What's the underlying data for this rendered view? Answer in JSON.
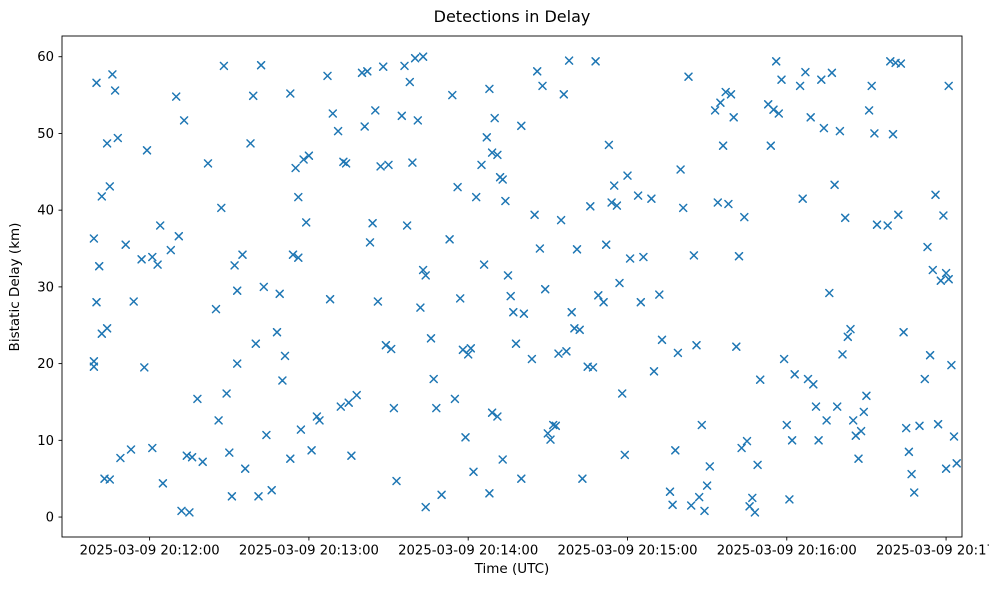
{
  "chart_data": {
    "type": "scatter",
    "title": "Detections in Delay",
    "xlabel": "Time (UTC)",
    "ylabel": "Bistatic Delay (km)",
    "grid": false,
    "legend": null,
    "marker": {
      "symbol": "x",
      "color": "#1f77b4",
      "size": 7
    },
    "x_axis": {
      "tick_labels": [
        "2025-03-09 20:12:00",
        "2025-03-09 20:13:00",
        "2025-03-09 20:14:00",
        "2025-03-09 20:15:00",
        "2025-03-09 20:16:00",
        "2025-03-09 20:17:00"
      ],
      "tick_positions_s": [
        30,
        90,
        150,
        210,
        270,
        330
      ],
      "xlim_s": [
        -3,
        336
      ],
      "x_unit": "seconds relative to first tick minus 30s"
    },
    "y_axis": {
      "tick_labels": [
        "0",
        "10",
        "20",
        "30",
        "40",
        "50",
        "60"
      ],
      "tick_values": [
        0,
        10,
        20,
        30,
        40,
        50,
        60
      ],
      "ylim": [
        -2.6,
        62.7
      ]
    },
    "points": [
      [
        9,
        36.3
      ],
      [
        9,
        20.3
      ],
      [
        10,
        56.6
      ],
      [
        10,
        28.0
      ],
      [
        11,
        32.7
      ],
      [
        12,
        41.8
      ],
      [
        12,
        23.9
      ],
      [
        13,
        5.0
      ],
      [
        14,
        48.7
      ],
      [
        14,
        24.6
      ],
      [
        15,
        43.1
      ],
      [
        15,
        4.9
      ],
      [
        16,
        57.7
      ],
      [
        17,
        55.6
      ],
      [
        18,
        49.4
      ],
      [
        19,
        7.7
      ],
      [
        21,
        35.5
      ],
      [
        23,
        8.8
      ],
      [
        24,
        28.1
      ],
      [
        9,
        19.6
      ],
      [
        27,
        33.6
      ],
      [
        28,
        19.5
      ],
      [
        29,
        47.8
      ],
      [
        31,
        33.9
      ],
      [
        31,
        9.0
      ],
      [
        33,
        32.9
      ],
      [
        34,
        38.0
      ],
      [
        35,
        4.4
      ],
      [
        38,
        34.8
      ],
      [
        40,
        54.8
      ],
      [
        41,
        36.6
      ],
      [
        42,
        0.8
      ],
      [
        43,
        51.7
      ],
      [
        44,
        8.0
      ],
      [
        45,
        0.6
      ],
      [
        46,
        7.8
      ],
      [
        48,
        15.4
      ],
      [
        50,
        7.2
      ],
      [
        52,
        46.1
      ],
      [
        55,
        27.1
      ],
      [
        56,
        12.6
      ],
      [
        57,
        40.3
      ],
      [
        58,
        58.8
      ],
      [
        59,
        16.1
      ],
      [
        60,
        8.4
      ],
      [
        61,
        2.7
      ],
      [
        62,
        32.8
      ],
      [
        63,
        29.5
      ],
      [
        63,
        20.0
      ],
      [
        65,
        34.2
      ],
      [
        66,
        6.3
      ],
      [
        68,
        48.7
      ],
      [
        69,
        54.9
      ],
      [
        70,
        22.6
      ],
      [
        71,
        2.7
      ],
      [
        72,
        58.9
      ],
      [
        73,
        30.0
      ],
      [
        74,
        10.7
      ],
      [
        76,
        3.5
      ],
      [
        78,
        24.1
      ],
      [
        79,
        29.1
      ],
      [
        80,
        17.8
      ],
      [
        81,
        21.0
      ],
      [
        83,
        55.2
      ],
      [
        83,
        7.6
      ],
      [
        84,
        34.2
      ],
      [
        85,
        45.5
      ],
      [
        86,
        41.7
      ],
      [
        86,
        33.8
      ],
      [
        87,
        11.4
      ],
      [
        88,
        46.6
      ],
      [
        89,
        38.4
      ],
      [
        90,
        47.1
      ],
      [
        91,
        8.7
      ],
      [
        93,
        13.1
      ],
      [
        94,
        12.6
      ],
      [
        97,
        57.5
      ],
      [
        98,
        28.4
      ],
      [
        99,
        52.6
      ],
      [
        101,
        50.3
      ],
      [
        102,
        14.4
      ],
      [
        103,
        46.3
      ],
      [
        104,
        46.1
      ],
      [
        105,
        14.9
      ],
      [
        106,
        8.0
      ],
      [
        108,
        15.9
      ],
      [
        110,
        57.9
      ],
      [
        111,
        50.9
      ],
      [
        112,
        58.1
      ],
      [
        113,
        35.8
      ],
      [
        114,
        38.3
      ],
      [
        115,
        53.0
      ],
      [
        116,
        28.1
      ],
      [
        117,
        45.7
      ],
      [
        118,
        58.7
      ],
      [
        119,
        22.4
      ],
      [
        120,
        45.9
      ],
      [
        121,
        21.9
      ],
      [
        122,
        14.2
      ],
      [
        123,
        4.7
      ],
      [
        125,
        52.3
      ],
      [
        126,
        58.8
      ],
      [
        127,
        38.0
      ],
      [
        128,
        56.7
      ],
      [
        129,
        46.2
      ],
      [
        130,
        59.8
      ],
      [
        131,
        51.7
      ],
      [
        132,
        27.3
      ],
      [
        133,
        60.0
      ],
      [
        133,
        32.2
      ],
      [
        134,
        31.5
      ],
      [
        134,
        1.3
      ],
      [
        136,
        23.3
      ],
      [
        137,
        18.0
      ],
      [
        138,
        14.2
      ],
      [
        140,
        2.9
      ],
      [
        143,
        36.2
      ],
      [
        144,
        55.0
      ],
      [
        145,
        15.4
      ],
      [
        146,
        43.0
      ],
      [
        147,
        28.5
      ],
      [
        148,
        21.8
      ],
      [
        149,
        10.4
      ],
      [
        150,
        21.2
      ],
      [
        151,
        22.0
      ],
      [
        152,
        5.9
      ],
      [
        153,
        41.7
      ],
      [
        155,
        45.9
      ],
      [
        156,
        32.9
      ],
      [
        157,
        49.5
      ],
      [
        158,
        55.8
      ],
      [
        158,
        3.1
      ],
      [
        159,
        47.5
      ],
      [
        159,
        13.6
      ],
      [
        160,
        52.0
      ],
      [
        161,
        47.2
      ],
      [
        161,
        13.1
      ],
      [
        162,
        44.3
      ],
      [
        163,
        44.0
      ],
      [
        163,
        7.5
      ],
      [
        164,
        41.2
      ],
      [
        165,
        31.5
      ],
      [
        166,
        28.8
      ],
      [
        167,
        26.7
      ],
      [
        168,
        22.6
      ],
      [
        170,
        51.0
      ],
      [
        170,
        5.0
      ],
      [
        171,
        26.5
      ],
      [
        174,
        20.6
      ],
      [
        175,
        39.4
      ],
      [
        176,
        58.1
      ],
      [
        177,
        35.0
      ],
      [
        178,
        56.2
      ],
      [
        179,
        29.7
      ],
      [
        180,
        10.9
      ],
      [
        181,
        10.1
      ],
      [
        182,
        12.0
      ],
      [
        183,
        11.9
      ],
      [
        184,
        21.3
      ],
      [
        185,
        38.7
      ],
      [
        186,
        55.1
      ],
      [
        187,
        21.6
      ],
      [
        188,
        59.5
      ],
      [
        189,
        26.7
      ],
      [
        190,
        24.6
      ],
      [
        191,
        34.9
      ],
      [
        192,
        24.4
      ],
      [
        193,
        5.0
      ],
      [
        195,
        19.6
      ],
      [
        196,
        40.5
      ],
      [
        197,
        19.5
      ],
      [
        198,
        59.4
      ],
      [
        199,
        28.9
      ],
      [
        201,
        28.0
      ],
      [
        202,
        35.5
      ],
      [
        203,
        48.5
      ],
      [
        204,
        41.0
      ],
      [
        205,
        43.2
      ],
      [
        206,
        40.6
      ],
      [
        207,
        30.5
      ],
      [
        208,
        16.1
      ],
      [
        209,
        8.1
      ],
      [
        210,
        44.5
      ],
      [
        211,
        33.7
      ],
      [
        214,
        41.9
      ],
      [
        215,
        28.0
      ],
      [
        216,
        33.9
      ],
      [
        219,
        41.5
      ],
      [
        220,
        19.0
      ],
      [
        222,
        29.0
      ],
      [
        223,
        23.1
      ],
      [
        226,
        3.3
      ],
      [
        227,
        1.6
      ],
      [
        228,
        8.7
      ],
      [
        229,
        21.4
      ],
      [
        230,
        45.3
      ],
      [
        231,
        40.3
      ],
      [
        233,
        57.4
      ],
      [
        234,
        1.5
      ],
      [
        235,
        34.1
      ],
      [
        236,
        22.4
      ],
      [
        237,
        2.6
      ],
      [
        238,
        12.0
      ],
      [
        239,
        0.8
      ],
      [
        240,
        4.1
      ],
      [
        241,
        6.6
      ],
      [
        243,
        53.0
      ],
      [
        244,
        41.0
      ],
      [
        245,
        54.0
      ],
      [
        246,
        48.4
      ],
      [
        247,
        55.4
      ],
      [
        248,
        40.8
      ],
      [
        249,
        55.1
      ],
      [
        250,
        52.1
      ],
      [
        251,
        22.2
      ],
      [
        252,
        34.0
      ],
      [
        253,
        9.0
      ],
      [
        254,
        39.1
      ],
      [
        255,
        9.9
      ],
      [
        256,
        1.4
      ],
      [
        257,
        2.5
      ],
      [
        258,
        0.6
      ],
      [
        259,
        6.8
      ],
      [
        260,
        17.9
      ],
      [
        263,
        53.8
      ],
      [
        264,
        48.4
      ],
      [
        265,
        53.1
      ],
      [
        266,
        59.4
      ],
      [
        267,
        52.6
      ],
      [
        268,
        57.0
      ],
      [
        269,
        20.6
      ],
      [
        270,
        12.0
      ],
      [
        271,
        2.3
      ],
      [
        272,
        10.0
      ],
      [
        273,
        18.6
      ],
      [
        275,
        56.2
      ],
      [
        276,
        41.5
      ],
      [
        277,
        58.0
      ],
      [
        278,
        18.0
      ],
      [
        279,
        52.1
      ],
      [
        280,
        17.3
      ],
      [
        281,
        14.4
      ],
      [
        282,
        10.0
      ],
      [
        283,
        57.0
      ],
      [
        284,
        50.7
      ],
      [
        285,
        12.6
      ],
      [
        286,
        29.2
      ],
      [
        287,
        57.9
      ],
      [
        288,
        43.3
      ],
      [
        289,
        14.4
      ],
      [
        290,
        50.3
      ],
      [
        291,
        21.2
      ],
      [
        292,
        39.0
      ],
      [
        293,
        23.5
      ],
      [
        294,
        24.5
      ],
      [
        295,
        12.6
      ],
      [
        296,
        10.6
      ],
      [
        297,
        7.6
      ],
      [
        298,
        11.2
      ],
      [
        299,
        13.7
      ],
      [
        300,
        15.8
      ],
      [
        301,
        53.0
      ],
      [
        302,
        56.2
      ],
      [
        303,
        50.0
      ],
      [
        304,
        38.1
      ],
      [
        308,
        38.0
      ],
      [
        309,
        59.4
      ],
      [
        310,
        49.9
      ],
      [
        311,
        59.2
      ],
      [
        312,
        39.4
      ],
      [
        313,
        59.1
      ],
      [
        314,
        24.1
      ],
      [
        315,
        11.6
      ],
      [
        316,
        8.5
      ],
      [
        317,
        5.6
      ],
      [
        318,
        3.2
      ],
      [
        320,
        11.9
      ],
      [
        322,
        18.0
      ],
      [
        323,
        35.2
      ],
      [
        324,
        21.1
      ],
      [
        325,
        32.2
      ],
      [
        326,
        42.0
      ],
      [
        327,
        12.1
      ],
      [
        328,
        30.8
      ],
      [
        329,
        39.3
      ],
      [
        330,
        31.8
      ],
      [
        330,
        6.3
      ],
      [
        331,
        56.2
      ],
      [
        331,
        31.0
      ],
      [
        332,
        19.8
      ],
      [
        333,
        10.5
      ],
      [
        334,
        7.0
      ]
    ]
  }
}
